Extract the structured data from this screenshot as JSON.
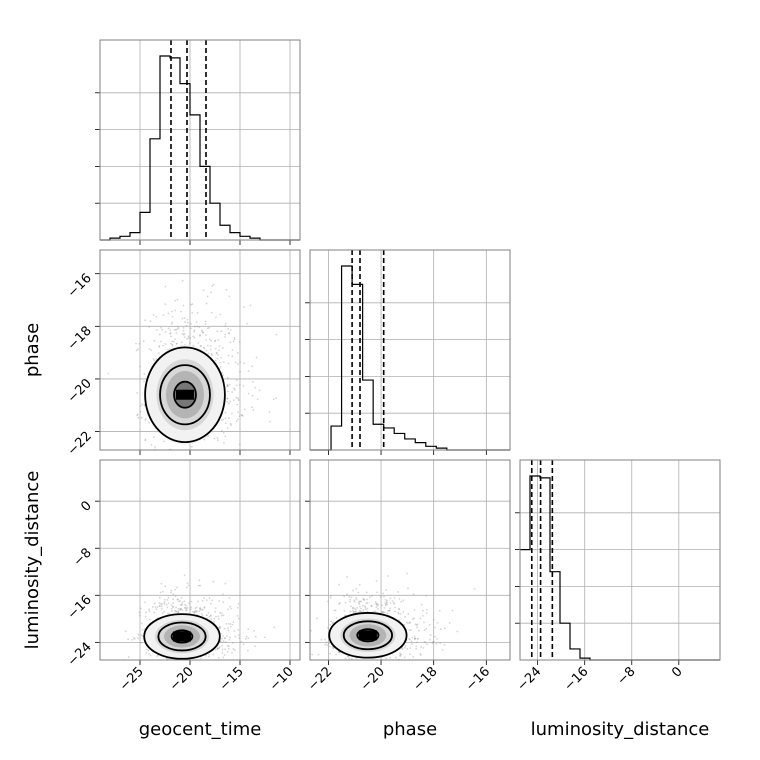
{
  "chart_data": {
    "type": "corner",
    "parameters": [
      {
        "name": "geocent_time",
        "range": [
          -29.0,
          -9.0
        ],
        "ticks": [
          -25,
          -20,
          -15,
          -10
        ],
        "tick_labels": [
          "−25",
          "−20",
          "−15",
          "−10"
        ],
        "quantiles": [
          -21.9,
          -20.3,
          -18.4
        ],
        "hist": {
          "edges": [
            -29,
            -28,
            -27,
            -26,
            -25,
            -24,
            -23,
            -22,
            -21,
            -20,
            -19,
            -18,
            -17,
            -16,
            -15,
            -14,
            -13,
            -12,
            -11,
            -10,
            -9
          ],
          "counts": [
            0.0,
            0.01,
            0.02,
            0.04,
            0.15,
            0.55,
            1.0,
            0.99,
            0.85,
            0.68,
            0.4,
            0.2,
            0.08,
            0.04,
            0.02,
            0.01,
            0.0,
            0.0,
            0.0,
            0.0
          ]
        }
      },
      {
        "name": "phase",
        "range": [
          -22.7,
          -15.1
        ],
        "ticks": [
          -22,
          -20,
          -18,
          -16
        ],
        "tick_labels": [
          "−22",
          "−20",
          "−18",
          "−16"
        ],
        "quantiles": [
          -21.1,
          -20.8,
          -19.9
        ],
        "hist": {
          "edges": [
            -22.7,
            -22.3,
            -21.9,
            -21.5,
            -21.1,
            -20.7,
            -20.3,
            -19.9,
            -19.5,
            -19.1,
            -18.7,
            -18.3,
            -17.9,
            -17.5,
            -17.1,
            -16.7,
            -16.3,
            -15.9,
            -15.5,
            -15.1
          ],
          "counts": [
            0.0,
            0.0,
            0.13,
            1.0,
            0.9,
            0.38,
            0.14,
            0.12,
            0.09,
            0.06,
            0.04,
            0.02,
            0.01,
            0.0,
            0.0,
            0.0,
            0.0,
            0.0,
            0.0
          ]
        }
      },
      {
        "name": "luminosity_distance",
        "range": [
          -27.0,
          7.0
        ],
        "ticks": [
          -24,
          -16,
          -8,
          0
        ],
        "tick_labels": [
          "−24",
          "−16",
          "−8",
          "0"
        ],
        "quantiles": [
          -25.0,
          -23.5,
          -21.5
        ],
        "hist": {
          "edges": [
            -27,
            -25.3,
            -23.6,
            -21.9,
            -20.2,
            -18.5,
            -16.8,
            -15.1,
            -13.4,
            -11.7,
            -10,
            -8.3,
            -6.6,
            -4.9,
            -3.2,
            -1.5,
            0.2,
            1.9,
            3.6,
            5.3,
            7
          ],
          "counts": [
            0.6,
            1.0,
            0.99,
            0.48,
            0.2,
            0.06,
            0.01,
            0.0,
            0.0,
            0.0,
            0.0,
            0.0,
            0.0,
            0.0,
            0.0,
            0.0,
            0.0,
            0.0,
            0.0,
            0.0
          ]
        }
      }
    ],
    "pairs": [
      {
        "x": "geocent_time",
        "y": "phase",
        "center": [
          -20.5,
          -20.6
        ],
        "spread": [
          1.9,
          0.9
        ]
      },
      {
        "x": "geocent_time",
        "y": "luminosity_distance",
        "center": [
          -20.8,
          -23.0
        ],
        "spread": [
          1.8,
          1.9
        ]
      },
      {
        "x": "phase",
        "y": "luminosity_distance",
        "center": [
          -20.5,
          -22.8
        ],
        "spread": [
          0.7,
          1.9
        ]
      }
    ],
    "grid": true
  }
}
